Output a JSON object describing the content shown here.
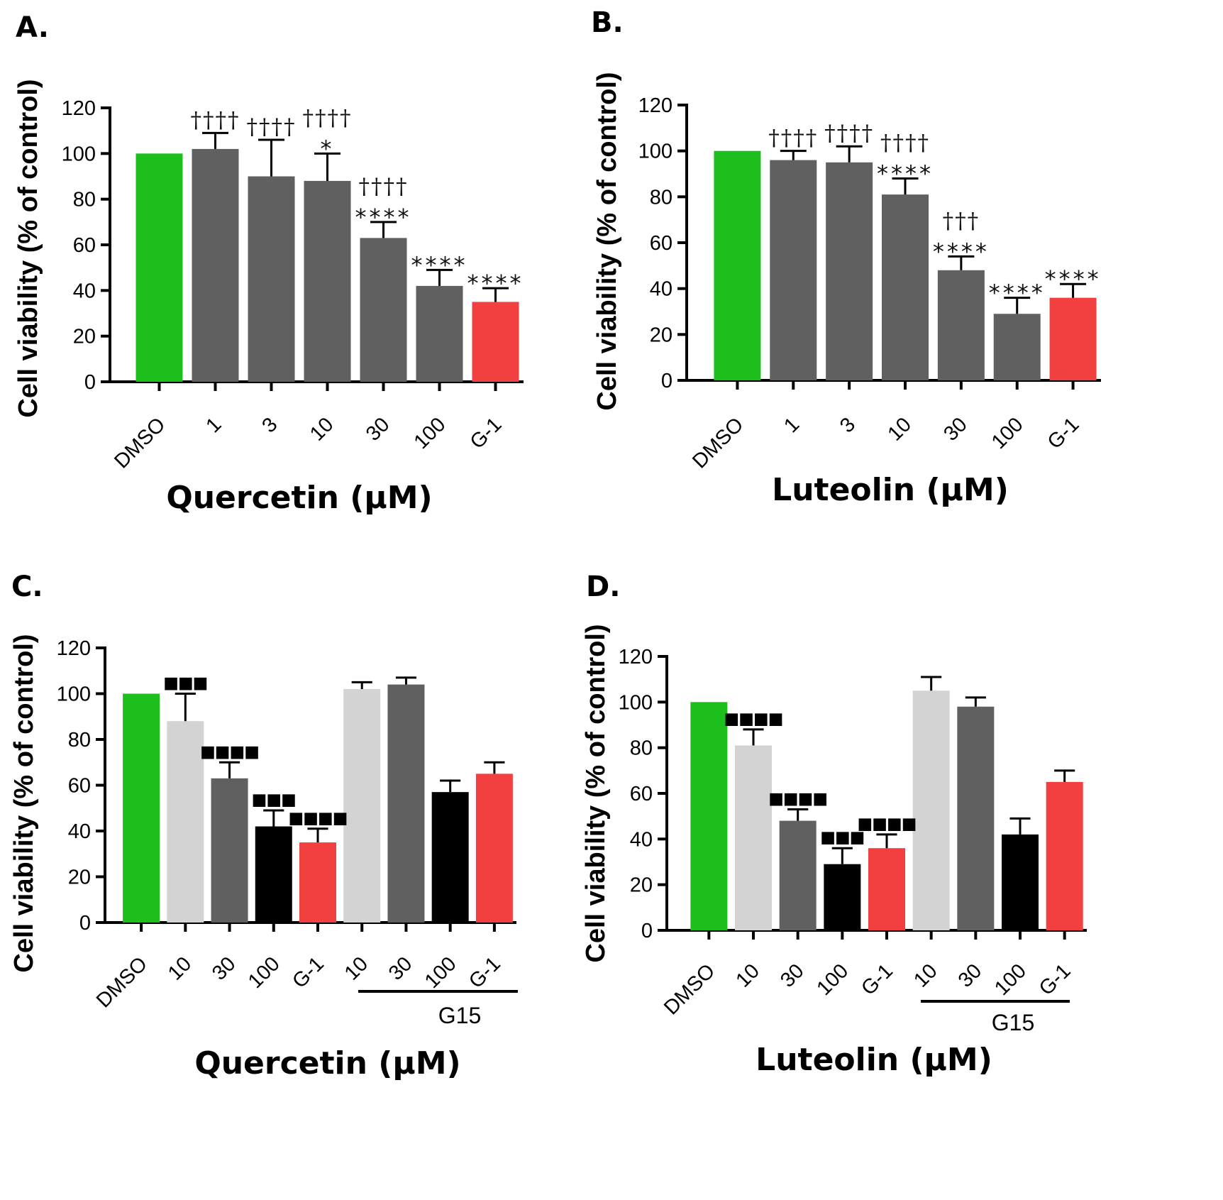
{
  "chart_data": [
    {
      "panel": "A.",
      "type": "bar",
      "ylabel": "Cell viability (% of control)",
      "xlabel": "Quercetin (μM)",
      "yticks": [
        "0",
        "20",
        "40",
        "60",
        "80",
        "100",
        "120"
      ],
      "ylim": [
        0,
        120
      ],
      "categories": [
        "DMSO",
        "1",
        "3",
        "10",
        "30",
        "100",
        "G-1"
      ],
      "values": [
        100,
        102,
        90,
        88,
        63,
        42,
        35
      ],
      "errors": [
        0,
        7,
        16,
        12,
        7,
        7,
        6
      ],
      "colors": [
        "#1dbf1d",
        "#606060",
        "#606060",
        "#606060",
        "#606060",
        "#606060",
        "#f23f3f"
      ],
      "annotations": [
        {
          "bar": 1,
          "lines": [
            "††††"
          ]
        },
        {
          "bar": 2,
          "lines": [
            "††††"
          ]
        },
        {
          "bar": 3,
          "lines": [
            "††††",
            "*"
          ]
        },
        {
          "bar": 4,
          "lines": [
            "††††",
            "****"
          ]
        },
        {
          "bar": 5,
          "lines": [
            "****"
          ]
        },
        {
          "bar": 6,
          "lines": [
            "****"
          ]
        }
      ]
    },
    {
      "panel": "B.",
      "type": "bar",
      "ylabel": "Cell viability (% of control)",
      "xlabel": "Luteolin  (μM)",
      "yticks": [
        "0",
        "20",
        "40",
        "60",
        "80",
        "100",
        "120"
      ],
      "ylim": [
        0,
        120
      ],
      "categories": [
        "DMSO",
        "1",
        "3",
        "10",
        "30",
        "100",
        "G-1"
      ],
      "values": [
        100,
        96,
        95,
        81,
        48,
        29,
        36
      ],
      "errors": [
        0,
        4,
        7,
        7,
        6,
        7,
        6
      ],
      "colors": [
        "#1dbf1d",
        "#606060",
        "#606060",
        "#606060",
        "#606060",
        "#606060",
        "#f23f3f"
      ],
      "annotations": [
        {
          "bar": 1,
          "lines": [
            "††††"
          ]
        },
        {
          "bar": 2,
          "lines": [
            "††††"
          ]
        },
        {
          "bar": 3,
          "lines": [
            "††††",
            "****"
          ]
        },
        {
          "bar": 4,
          "lines": [
            "†††",
            "****"
          ]
        },
        {
          "bar": 5,
          "lines": [
            "****"
          ]
        },
        {
          "bar": 6,
          "lines": [
            "****"
          ]
        }
      ]
    },
    {
      "panel": "C.",
      "type": "bar",
      "ylabel": "Cell viability (% of control)",
      "xlabel": "Quercetin (μM)",
      "group_label": "G15",
      "yticks": [
        "0",
        "20",
        "40",
        "60",
        "80",
        "100",
        "120"
      ],
      "ylim": [
        0,
        120
      ],
      "categories": [
        "DMSO",
        "10",
        "30",
        "100",
        "G-1",
        "10",
        "30",
        "100",
        "G-1"
      ],
      "values": [
        100,
        88,
        63,
        42,
        35,
        102,
        104,
        57,
        65
      ],
      "errors": [
        0,
        12,
        7,
        7,
        6,
        3,
        3,
        5,
        5
      ],
      "colors": [
        "#1dbf1d",
        "#d3d3d3",
        "#606060",
        "#000000",
        "#f23f3f",
        "#d3d3d3",
        "#606060",
        "#000000",
        "#f23f3f"
      ],
      "annotations": [
        {
          "bar": 1,
          "lines": [
            "■■■"
          ]
        },
        {
          "bar": 2,
          "lines": [
            "■■■■"
          ]
        },
        {
          "bar": 3,
          "lines": [
            "■■■"
          ]
        },
        {
          "bar": 4,
          "lines": [
            "■■■■"
          ]
        }
      ]
    },
    {
      "panel": "D.",
      "type": "bar",
      "ylabel": "Cell viability (% of control)",
      "xlabel": "Luteolin  (μM)",
      "group_label": "G15",
      "yticks": [
        "0",
        "20",
        "40",
        "60",
        "80",
        "100",
        "120"
      ],
      "ylim": [
        0,
        120
      ],
      "categories": [
        "DMSO",
        "10",
        "30",
        "100",
        "G-1",
        "10",
        "30",
        "100",
        "G-1"
      ],
      "values": [
        100,
        81,
        48,
        29,
        36,
        105,
        98,
        42,
        65
      ],
      "errors": [
        0,
        7,
        5,
        7,
        6,
        6,
        4,
        7,
        5
      ],
      "colors": [
        "#1dbf1d",
        "#d3d3d3",
        "#606060",
        "#000000",
        "#f23f3f",
        "#d3d3d3",
        "#606060",
        "#000000",
        "#f23f3f"
      ],
      "annotations": [
        {
          "bar": 1,
          "lines": [
            "■■■■"
          ]
        },
        {
          "bar": 2,
          "lines": [
            "■■■■"
          ]
        },
        {
          "bar": 3,
          "lines": [
            "■■■"
          ]
        },
        {
          "bar": 4,
          "lines": [
            "■■■■"
          ]
        }
      ]
    }
  ]
}
